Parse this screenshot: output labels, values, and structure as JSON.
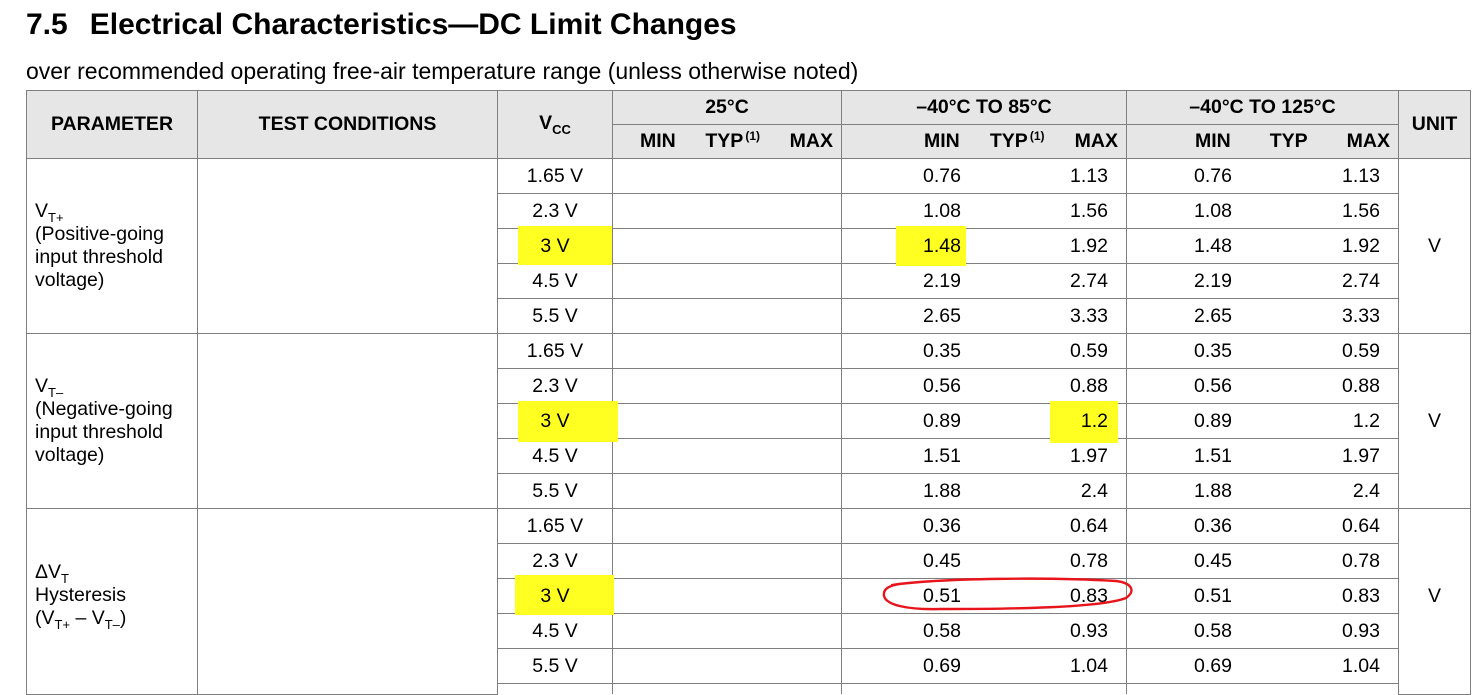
{
  "heading": {
    "number": "7.5",
    "text": "Electrical Characteristics—DC Limit Changes"
  },
  "subtitle": "over recommended operating free-air temperature range (unless otherwise noted)",
  "header": {
    "parameter": "PARAMETER",
    "test_conditions": "TEST CONDITIONS",
    "vcc": "V",
    "vcc_sub": "CC",
    "t25": "25°C",
    "t85": "–40°C TO 85°C",
    "t125": "–40°C TO 125°C",
    "unit": "UNIT",
    "min": "MIN",
    "typ": "TYP",
    "typ_note": "(1)",
    "max": "MAX"
  },
  "groups": [
    {
      "param_symbol": "V",
      "param_sub": "T+",
      "param_desc": [
        "(Positive-going",
        "input threshold",
        "voltage)"
      ],
      "unit": "V",
      "rows": [
        {
          "vcc": "1.65 V",
          "min85": "0.76",
          "max85": "1.13",
          "min125": "0.76",
          "max125": "1.13"
        },
        {
          "vcc": "2.3 V",
          "min85": "1.08",
          "max85": "1.56",
          "min125": "1.08",
          "max125": "1.56"
        },
        {
          "vcc": "3 V",
          "min85": "1.48",
          "max85": "1.92",
          "min125": "1.48",
          "max125": "1.92"
        },
        {
          "vcc": "4.5 V",
          "min85": "2.19",
          "max85": "2.74",
          "min125": "2.19",
          "max125": "2.74"
        },
        {
          "vcc": "5.5 V",
          "min85": "2.65",
          "max85": "3.33",
          "min125": "2.65",
          "max125": "3.33"
        }
      ]
    },
    {
      "param_symbol": "V",
      "param_sub": "T–",
      "param_desc": [
        "(Negative-going",
        "input threshold",
        "voltage)"
      ],
      "unit": "V",
      "rows": [
        {
          "vcc": "1.65 V",
          "min85": "0.35",
          "max85": "0.59",
          "min125": "0.35",
          "max125": "0.59"
        },
        {
          "vcc": "2.3 V",
          "min85": "0.56",
          "max85": "0.88",
          "min125": "0.56",
          "max125": "0.88"
        },
        {
          "vcc": "3 V",
          "min85": "0.89",
          "max85": "1.2",
          "min125": "0.89",
          "max125": "1.2"
        },
        {
          "vcc": "4.5 V",
          "min85": "1.51",
          "max85": "1.97",
          "min125": "1.51",
          "max125": "1.97"
        },
        {
          "vcc": "5.5 V",
          "min85": "1.88",
          "max85": "2.4",
          "min125": "1.88",
          "max125": "2.4"
        }
      ]
    },
    {
      "param_symbol": "ΔV",
      "param_sub": "T",
      "param_line2": "Hysteresis",
      "param_line3_a": "(V",
      "param_line3_sub1": "T+",
      "param_line3_b": " – V",
      "param_line3_sub2": "T–",
      "param_line3_c": ")",
      "unit": "V",
      "rows": [
        {
          "vcc": "1.65 V",
          "min85": "0.36",
          "max85": "0.64",
          "min125": "0.36",
          "max125": "0.64"
        },
        {
          "vcc": "2.3 V",
          "min85": "0.45",
          "max85": "0.78",
          "min125": "0.45",
          "max125": "0.78"
        },
        {
          "vcc": "3 V",
          "min85": "0.51",
          "max85": "0.83",
          "min125": "0.51",
          "max125": "0.83"
        },
        {
          "vcc": "4.5 V",
          "min85": "0.58",
          "max85": "0.93",
          "min125": "0.58",
          "max125": "0.93"
        },
        {
          "vcc": "5.5 V",
          "min85": "0.69",
          "max85": "1.04",
          "min125": "0.69",
          "max125": "1.04"
        }
      ]
    }
  ],
  "annotation_colors": {
    "highlight": "#ffff21",
    "circle": "#e8141c",
    "header_bg": "#e6e6e6"
  }
}
